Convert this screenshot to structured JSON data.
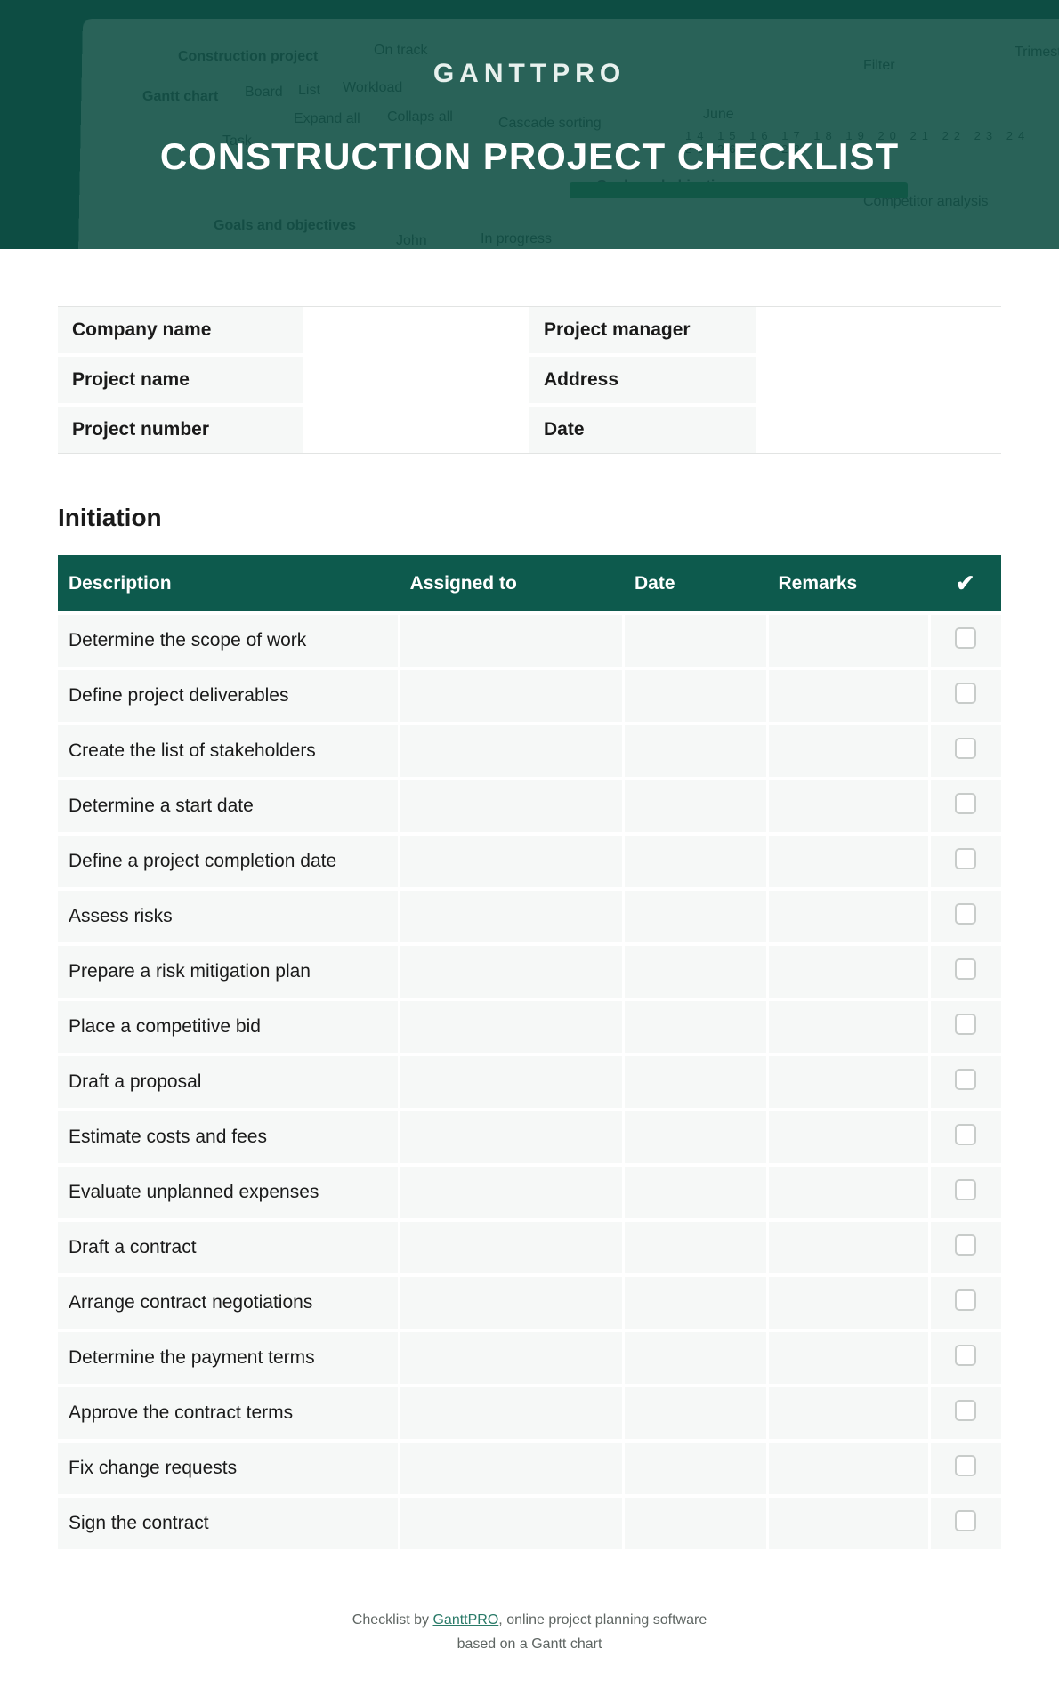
{
  "brand": {
    "name": "GANTTPRO"
  },
  "page": {
    "title": "CONSTRUCTION PROJECT CHECKLIST"
  },
  "colors": {
    "hero_bg": "#0d4d43",
    "header_row_bg": "#0d5a4d",
    "row_bg": "#f6f8f7",
    "text": "#1a1a1a",
    "border": "#e2e4e3",
    "checkbox_border": "#c8ccca",
    "link": "#2a7a68"
  },
  "info": {
    "left": [
      {
        "label": "Company name",
        "value": ""
      },
      {
        "label": "Project name",
        "value": ""
      },
      {
        "label": "Project number",
        "value": ""
      }
    ],
    "right": [
      {
        "label": "Project manager",
        "value": ""
      },
      {
        "label": "Address",
        "value": ""
      },
      {
        "label": "Date",
        "value": ""
      }
    ]
  },
  "section": {
    "title": "Initiation"
  },
  "checklist": {
    "columns": {
      "description": "Description",
      "assigned_to": "Assigned to",
      "date": "Date",
      "remarks": "Remarks",
      "check": "✔"
    },
    "rows": [
      {
        "description": "Determine the scope of work",
        "assigned_to": "",
        "date": "",
        "remarks": "",
        "checked": false
      },
      {
        "description": "Define project deliverables",
        "assigned_to": "",
        "date": "",
        "remarks": "",
        "checked": false
      },
      {
        "description": "Create the list of stakeholders",
        "assigned_to": "",
        "date": "",
        "remarks": "",
        "checked": false
      },
      {
        "description": "Determine a start date",
        "assigned_to": "",
        "date": "",
        "remarks": "",
        "checked": false
      },
      {
        "description": "Define a project completion date",
        "assigned_to": "",
        "date": "",
        "remarks": "",
        "checked": false
      },
      {
        "description": "Assess risks",
        "assigned_to": "",
        "date": "",
        "remarks": "",
        "checked": false
      },
      {
        "description": "Prepare a risk mitigation plan",
        "assigned_to": "",
        "date": "",
        "remarks": "",
        "checked": false
      },
      {
        "description": "Place a competitive bid",
        "assigned_to": "",
        "date": "",
        "remarks": "",
        "checked": false
      },
      {
        "description": "Draft a proposal",
        "assigned_to": "",
        "date": "",
        "remarks": "",
        "checked": false
      },
      {
        "description": "Estimate costs and fees",
        "assigned_to": "",
        "date": "",
        "remarks": "",
        "checked": false
      },
      {
        "description": "Evaluate unplanned expenses",
        "assigned_to": "",
        "date": "",
        "remarks": "",
        "checked": false
      },
      {
        "description": "Draft a contract",
        "assigned_to": "",
        "date": "",
        "remarks": "",
        "checked": false
      },
      {
        "description": "Arrange contract negotiations",
        "assigned_to": "",
        "date": "",
        "remarks": "",
        "checked": false
      },
      {
        "description": "Determine the payment terms",
        "assigned_to": "",
        "date": "",
        "remarks": "",
        "checked": false
      },
      {
        "description": "Approve the contract terms",
        "assigned_to": "",
        "date": "",
        "remarks": "",
        "checked": false
      },
      {
        "description": "Fix change requests",
        "assigned_to": "",
        "date": "",
        "remarks": "",
        "checked": false
      },
      {
        "description": "Sign the contract",
        "assigned_to": "",
        "date": "",
        "remarks": "",
        "checked": false
      }
    ]
  },
  "footer": {
    "line1_prefix": "Checklist by ",
    "link_text": "GanttPRO",
    "line1_suffix": ", online project planning software",
    "line2": "based on a Gantt chart"
  },
  "hero_bg_text": {
    "t1": "Construction project",
    "t2": "On track",
    "t3": "Gantt chart",
    "t4": "Board",
    "t5": "List",
    "t6": "Workload",
    "t7": "Expand all",
    "t8": "Collaps all",
    "t9": "Cascade sorting",
    "t10": "Filter",
    "t11": "June",
    "t12": "Goals and objectives",
    "t13": "Goals and objectives",
    "t14": "In progress",
    "t15": "John",
    "t16": "Competitor analysis",
    "t17": "Trimestres",
    "t18": "Task"
  }
}
